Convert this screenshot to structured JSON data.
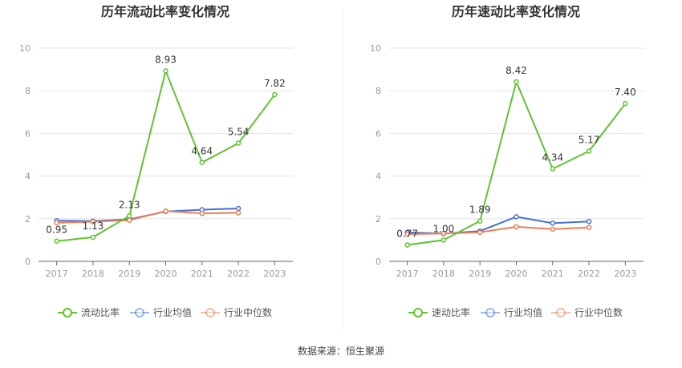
{
  "source_text": "数据来源：恒生聚源",
  "colors": {
    "main": "#5ec42f",
    "avg": "#4472d4",
    "median": "#ee7d55",
    "grid": "#e6e6e6",
    "axis": "#666666"
  },
  "chart_data": [
    {
      "type": "line",
      "title": "历年流动比率变化情况",
      "categories": [
        "2017",
        "2018",
        "2019",
        "2020",
        "2021",
        "2022",
        "2023"
      ],
      "ylim": [
        0,
        10
      ],
      "yticks": [
        "0",
        "2",
        "4",
        "6",
        "8",
        "10"
      ],
      "series": [
        {
          "name": "流动比率",
          "values": [
            0.95,
            1.13,
            2.13,
            8.93,
            4.64,
            5.54,
            7.82
          ],
          "labels": [
            "0.95",
            "1.13",
            "2.13",
            "8.93",
            "4.64",
            "5.54",
            "7.82"
          ]
        },
        {
          "name": "行业均值",
          "values": [
            1.91,
            1.89,
            1.97,
            2.34,
            2.42,
            2.48,
            null
          ]
        },
        {
          "name": "行业中位数",
          "values": [
            1.81,
            1.86,
            1.93,
            2.36,
            2.25,
            2.28,
            null
          ]
        }
      ]
    },
    {
      "type": "line",
      "title": "历年速动比率变化情况",
      "categories": [
        "2017",
        "2018",
        "2019",
        "2020",
        "2021",
        "2022",
        "2023"
      ],
      "ylim": [
        0,
        10
      ],
      "yticks": [
        "0",
        "2",
        "4",
        "6",
        "8",
        "10"
      ],
      "series": [
        {
          "name": "速动比率",
          "values": [
            0.77,
            1.0,
            1.89,
            8.42,
            4.34,
            5.17,
            7.4
          ],
          "labels": [
            "0.77",
            "1.00",
            "1.89",
            "8.42",
            "4.34",
            "5.17",
            "7.40"
          ]
        },
        {
          "name": "行业均值",
          "values": [
            1.36,
            1.3,
            1.42,
            2.09,
            1.79,
            1.87,
            null
          ]
        },
        {
          "name": "行业中位数",
          "values": [
            1.28,
            1.31,
            1.36,
            1.62,
            1.51,
            1.59,
            null
          ]
        }
      ]
    }
  ]
}
